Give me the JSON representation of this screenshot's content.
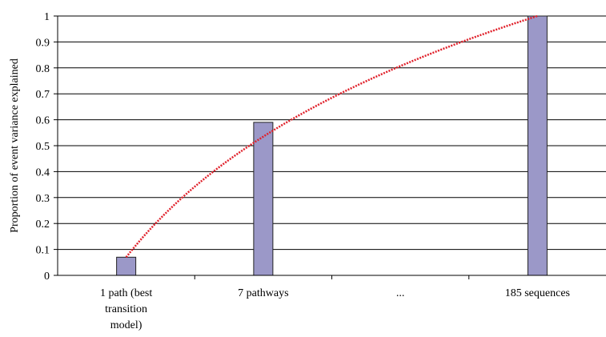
{
  "chart_data": {
    "type": "bar",
    "title": "",
    "xlabel": "",
    "ylabel": "Proportion of event variance explained",
    "categories": [
      [
        "1 path (best",
        "transition",
        "model)"
      ],
      [
        "7 pathways"
      ],
      [
        "..."
      ],
      [
        "185 sequences"
      ]
    ],
    "values": [
      0.07,
      0.59,
      null,
      1.0
    ],
    "ylim": [
      0,
      1
    ],
    "yticks": [
      "0",
      "0.1",
      "0.2",
      "0.3",
      "0.4",
      "0.5",
      "0.6",
      "0.7",
      "0.8",
      "0.9",
      "1"
    ],
    "grid": true,
    "legend": "none",
    "bar_color": "#9b98c8",
    "bar_edge_color": "#222222",
    "trend_line": {
      "style": "dotted",
      "color": "#e0202a",
      "shape": "logarithmic"
    }
  }
}
